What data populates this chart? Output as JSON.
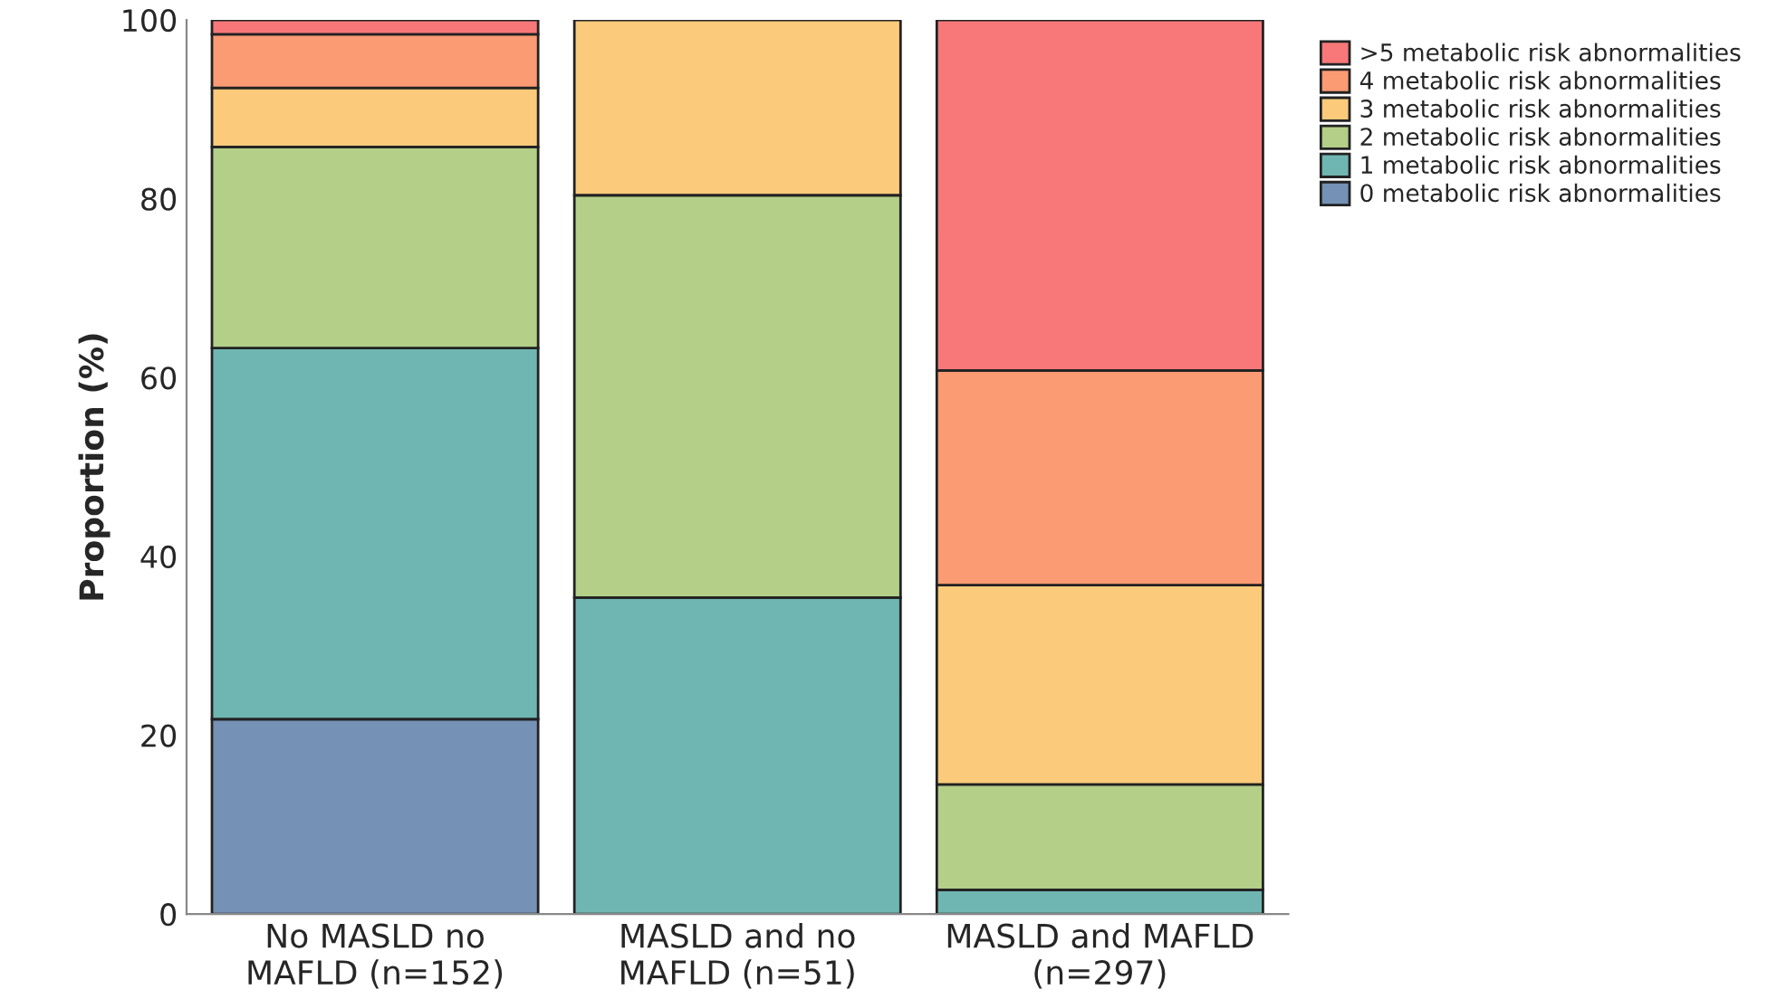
{
  "chart_data": {
    "type": "bar",
    "stacked": true,
    "ylabel": "Proportion (%)",
    "categories": [
      "No MASLD no\nMAFLD (n=152)",
      "MASLD and no\nMAFLD (n=51)",
      "MASLD and MAFLD\n(n=297)"
    ],
    "ylim": [
      0,
      100
    ],
    "yticks": [
      0,
      20,
      40,
      60,
      80,
      100
    ],
    "grid": false,
    "legend": "top right",
    "series": [
      {
        "name": "0 metabolic risk abnormalities",
        "color": "#7591b5",
        "values": [
          21.8,
          null,
          null
        ]
      },
      {
        "name": "1 metabolic risk abnormalities",
        "color": "#6fb6b2",
        "values": [
          41.5,
          35.4,
          2.7
        ]
      },
      {
        "name": "2 metabolic risk abnormalities",
        "color": "#b3cf88",
        "values": [
          22.5,
          45.0,
          11.8
        ]
      },
      {
        "name": "3 metabolic risk abnormalities",
        "color": "#fbca7b",
        "values": [
          6.6,
          19.6,
          22.3
        ]
      },
      {
        "name": "4 metabolic risk abnormalities",
        "color": "#fb9b73",
        "values": [
          6.0,
          null,
          24.0
        ]
      },
      {
        "name": ">5 metabolic risk abnormalities",
        "color": "#f8787a",
        "values": [
          1.6,
          null,
          39.2
        ]
      }
    ]
  }
}
